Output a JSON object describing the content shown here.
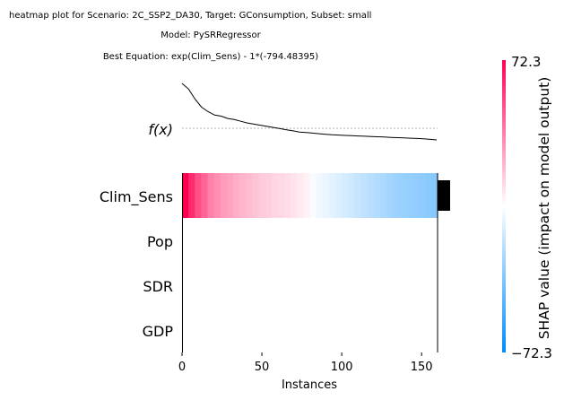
{
  "chart_data": {
    "type": "heatmap",
    "title_lines": [
      "heatmap plot for Scenario: 2C_SSP2_DA30, Target: GConsumption, Subset: small",
      "Model: PySRRegressor",
      "Best Equation: exp(Clim_Sens) - 1*(-794.48395)"
    ],
    "fx_label": "f(x)",
    "xlabel": "Instances",
    "x_ticks": [
      0,
      50,
      100,
      150
    ],
    "x_range": [
      0,
      160
    ],
    "features": [
      "Clim_Sens",
      "Pop",
      "SDR",
      "GDP"
    ],
    "colorbar": {
      "label": "SHAP value (impact on model output)",
      "max_label": "72.3",
      "min_label": "−72.3",
      "vmax": 72.3,
      "vmin": -72.3,
      "pos_color": "#ff0051",
      "neg_color": "#008bfb"
    },
    "clim_sens_shap": [
      72.3,
      60,
      50,
      44,
      36,
      32,
      28,
      26,
      23,
      21,
      19,
      17,
      15,
      14,
      12,
      11,
      10,
      8,
      6,
      4,
      -2,
      -4,
      -6,
      -8,
      -10,
      -12,
      -14,
      -16,
      -18,
      -20,
      -22,
      -24,
      -26,
      -28,
      -29,
      -30,
      -31,
      -32,
      -33,
      -34
    ],
    "fx_values": [
      1.0,
      0.9,
      0.72,
      0.58,
      0.5,
      0.44,
      0.42,
      0.38,
      0.36,
      0.33,
      0.3,
      0.28,
      0.26,
      0.24,
      0.22,
      0.2,
      0.18,
      0.16,
      0.14,
      0.13,
      0.12,
      0.11,
      0.1,
      0.09,
      0.085,
      0.08,
      0.075,
      0.07,
      0.065,
      0.06,
      0.055,
      0.05,
      0.045,
      0.04,
      0.035,
      0.03,
      0.025,
      0.02,
      0.01,
      0.0
    ],
    "importance": [
      1.0,
      0,
      0,
      0
    ]
  }
}
